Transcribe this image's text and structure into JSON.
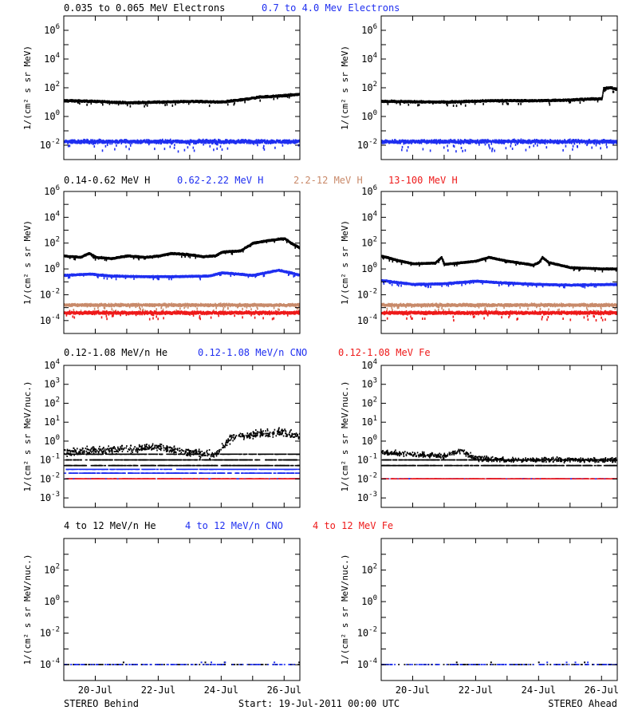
{
  "colors": {
    "black": "#000000",
    "blue": "#1f2ff0",
    "salmon": "#c98a6a",
    "red": "#ee1a1a",
    "axis": "#000000"
  },
  "footer": {
    "left": "STEREO Behind",
    "center": "Start: 19-Jul-2011 00:00 UTC",
    "right": "STEREO Ahead"
  },
  "chart_data": [
    {
      "id": "electrons",
      "type": "scatter",
      "ylabel": "1/(cm² s sr MeV)",
      "ylim_log10": [
        -3,
        7
      ],
      "yticks_log10": [
        -2,
        0,
        2,
        4,
        6
      ],
      "legend": [
        {
          "text": "0.035 to 0.065 MeV Electrons",
          "color": "black"
        },
        {
          "text": "0.7 to 4.0 Mev Electrons",
          "color": "blue"
        }
      ],
      "x_days": [
        0,
        7.5
      ],
      "xticks": [
        "20-Jul",
        "22-Jul",
        "24-Jul",
        "26-Jul"
      ],
      "xtick_days": [
        1,
        3,
        5,
        7
      ],
      "panels": [
        {
          "side": "STEREO Behind",
          "series": [
            {
              "name": "0.035 to 0.065 MeV Electrons",
              "color": "black",
              "style": "band",
              "knots": [
                [
                  0,
                  1.1
                ],
                [
                  1,
                  1.05
                ],
                [
                  2,
                  0.95
                ],
                [
                  3,
                  1.0
                ],
                [
                  4,
                  1.05
                ],
                [
                  5,
                  1.0
                ],
                [
                  5.6,
                  1.15
                ],
                [
                  6.2,
                  1.35
                ],
                [
                  7,
                  1.45
                ],
                [
                  7.5,
                  1.55
                ]
              ],
              "spread": 0.15
            },
            {
              "name": "0.7 to 4.0 Mev Electrons",
              "color": "blue",
              "style": "band",
              "knots": [
                [
                  0,
                  -1.75
                ],
                [
                  7.5,
                  -1.75
                ]
              ],
              "spread": 0.35
            }
          ]
        },
        {
          "side": "STEREO Ahead",
          "series": [
            {
              "name": "0.035 to 0.065 MeV Electrons",
              "color": "black",
              "style": "band",
              "knots": [
                [
                  0,
                  1.05
                ],
                [
                  2,
                  1.0
                ],
                [
                  3.5,
                  1.1
                ],
                [
                  4,
                  1.1
                ],
                [
                  5,
                  1.1
                ],
                [
                  6,
                  1.15
                ],
                [
                  7,
                  1.25
                ],
                [
                  7.05,
                  1.95
                ],
                [
                  7.3,
                  2.0
                ],
                [
                  7.5,
                  1.85
                ]
              ],
              "spread": 0.15
            },
            {
              "name": "0.7 to 4.0 Mev Electrons",
              "color": "blue",
              "style": "band",
              "knots": [
                [
                  0,
                  -1.75
                ],
                [
                  7.5,
                  -1.75
                ]
              ],
              "spread": 0.35
            }
          ]
        }
      ]
    },
    {
      "id": "protons",
      "type": "scatter",
      "ylabel": "1/(cm² s sr MeV)",
      "ylim_log10": [
        -5,
        6
      ],
      "yticks_log10": [
        -4,
        -2,
        0,
        2,
        4,
        6
      ],
      "legend": [
        {
          "text": "0.14-0.62 MeV H",
          "color": "black"
        },
        {
          "text": "0.62-2.22 MeV H",
          "color": "blue"
        },
        {
          "text": "2.2-12 MeV H",
          "color": "salmon"
        },
        {
          "text": "13-100 MeV H",
          "color": "red"
        }
      ],
      "x_days": [
        0,
        7.5
      ],
      "xticks": [
        "20-Jul",
        "22-Jul",
        "24-Jul",
        "26-Jul"
      ],
      "xtick_days": [
        1,
        3,
        5,
        7
      ],
      "panels": [
        {
          "side": "STEREO Behind",
          "series": [
            {
              "name": "0.14-0.62 MeV H",
              "color": "black",
              "style": "band",
              "knots": [
                [
                  0,
                  1.0
                ],
                [
                  0.5,
                  0.9
                ],
                [
                  0.8,
                  1.2
                ],
                [
                  1,
                  0.9
                ],
                [
                  1.5,
                  0.8
                ],
                [
                  2,
                  1.0
                ],
                [
                  2.6,
                  0.9
                ],
                [
                  3,
                  1.0
                ],
                [
                  3.4,
                  1.2
                ],
                [
                  4,
                  1.1
                ],
                [
                  4.4,
                  0.95
                ],
                [
                  4.8,
                  1.0
                ],
                [
                  5,
                  1.3
                ],
                [
                  5.6,
                  1.4
                ],
                [
                  6,
                  2.0
                ],
                [
                  6.5,
                  2.2
                ],
                [
                  7,
                  2.35
                ],
                [
                  7.2,
                  2.0
                ],
                [
                  7.5,
                  1.6
                ]
              ],
              "spread": 0.12
            },
            {
              "name": "0.62-2.22 MeV H",
              "color": "blue",
              "style": "band",
              "knots": [
                [
                  0,
                  -0.5
                ],
                [
                  0.8,
                  -0.4
                ],
                [
                  1.5,
                  -0.55
                ],
                [
                  2.5,
                  -0.6
                ],
                [
                  3.4,
                  -0.6
                ],
                [
                  4.6,
                  -0.55
                ],
                [
                  5,
                  -0.3
                ],
                [
                  6,
                  -0.5
                ],
                [
                  6.8,
                  -0.1
                ],
                [
                  7.2,
                  -0.3
                ],
                [
                  7.5,
                  -0.5
                ]
              ],
              "spread": 0.12
            },
            {
              "name": "2.2-12 MeV H",
              "color": "salmon",
              "style": "band",
              "knots": [
                [
                  0,
                  -2.8
                ],
                [
                  7.5,
                  -2.8
                ]
              ],
              "spread": 0.25
            },
            {
              "name": "13-100 MeV H",
              "color": "red",
              "style": "band",
              "knots": [
                [
                  0,
                  -3.4
                ],
                [
                  7.5,
                  -3.4
                ]
              ],
              "spread": 0.3
            }
          ]
        },
        {
          "side": "STEREO Ahead",
          "series": [
            {
              "name": "0.14-0.62 MeV H",
              "color": "black",
              "style": "band",
              "knots": [
                [
                  0,
                  1.0
                ],
                [
                  0.6,
                  0.6
                ],
                [
                  1,
                  0.4
                ],
                [
                  1.7,
                  0.45
                ],
                [
                  1.9,
                  0.9
                ],
                [
                  2,
                  0.35
                ],
                [
                  2.6,
                  0.5
                ],
                [
                  3,
                  0.6
                ],
                [
                  3.4,
                  0.9
                ],
                [
                  4,
                  0.6
                ],
                [
                  4.8,
                  0.3
                ],
                [
                  5,
                  0.5
                ],
                [
                  5.1,
                  0.9
                ],
                [
                  5.3,
                  0.5
                ],
                [
                  6,
                  0.1
                ],
                [
                  7,
                  0.0
                ],
                [
                  7.5,
                  0.0
                ]
              ],
              "spread": 0.1
            },
            {
              "name": "0.62-2.22 MeV H",
              "color": "blue",
              "style": "band",
              "knots": [
                [
                  0,
                  -0.9
                ],
                [
                  1,
                  -1.2
                ],
                [
                  2,
                  -1.15
                ],
                [
                  3,
                  -0.95
                ],
                [
                  4,
                  -1.1
                ],
                [
                  5,
                  -1.2
                ],
                [
                  6,
                  -1.25
                ],
                [
                  7.5,
                  -1.2
                ]
              ],
              "spread": 0.12
            },
            {
              "name": "2.2-12 MeV H",
              "color": "salmon",
              "style": "band",
              "knots": [
                [
                  0,
                  -2.8
                ],
                [
                  7.5,
                  -2.8
                ]
              ],
              "spread": 0.25
            },
            {
              "name": "13-100 MeV H",
              "color": "red",
              "style": "band",
              "knots": [
                [
                  0,
                  -3.4
                ],
                [
                  7.5,
                  -3.4
                ]
              ],
              "spread": 0.3
            }
          ]
        }
      ]
    },
    {
      "id": "heavy-low",
      "type": "scatter",
      "ylabel": "1/(cm² s sr MeV/nuc.)",
      "ylim_log10": [
        -3.5,
        4
      ],
      "yticks_log10": [
        -3,
        -2,
        -1,
        0,
        1,
        2,
        3,
        4
      ],
      "legend": [
        {
          "text": "0.12-1.08 MeV/n He",
          "color": "black"
        },
        {
          "text": "0.12-1.08 MeV/n CNO",
          "color": "blue"
        },
        {
          "text": "0.12-1.08 MeV Fe",
          "color": "red"
        }
      ],
      "x_days": [
        0,
        7.5
      ],
      "xticks": [
        "20-Jul",
        "22-Jul",
        "24-Jul",
        "26-Jul"
      ],
      "xtick_days": [
        1,
        3,
        5,
        7
      ],
      "panels": [
        {
          "side": "STEREO Behind",
          "series": [
            {
              "name": "0.12-1.08 MeV/n He",
              "color": "black",
              "style": "dots",
              "knots": [
                [
                  0,
                  -0.6
                ],
                [
                  1,
                  -0.5
                ],
                [
                  2,
                  -0.45
                ],
                [
                  3,
                  -0.3
                ],
                [
                  4,
                  -0.6
                ],
                [
                  4.8,
                  -0.7
                ],
                [
                  5.3,
                  0.2
                ],
                [
                  6,
                  0.35
                ],
                [
                  7,
                  0.45
                ],
                [
                  7.5,
                  0.2
                ]
              ],
              "spread": 0.5
            },
            {
              "name": "0.12-1.08 MeV/n He",
              "color": "black",
              "style": "levels",
              "levels": [
                -1.3,
                -1.0,
                -0.7
              ]
            },
            {
              "name": "0.12-1.08 MeV/n CNO",
              "color": "blue",
              "style": "levels",
              "levels": [
                -2.0,
                -1.7,
                -1.5
              ]
            },
            {
              "name": "0.12-1.08 MeV Fe",
              "color": "red",
              "style": "levels",
              "levels": [
                -2.0
              ]
            }
          ]
        },
        {
          "side": "STEREO Ahead",
          "series": [
            {
              "name": "0.12-1.08 MeV/n He",
              "color": "black",
              "style": "dots",
              "knots": [
                [
                  0,
                  -0.6
                ],
                [
                  1,
                  -0.7
                ],
                [
                  2,
                  -0.8
                ],
                [
                  2.5,
                  -0.5
                ],
                [
                  3,
                  -0.9
                ],
                [
                  4,
                  -1.0
                ],
                [
                  5,
                  -1.0
                ],
                [
                  6,
                  -1.0
                ],
                [
                  7.5,
                  -1.0
                ]
              ],
              "spread": 0.3
            },
            {
              "name": "0.12-1.08 MeV/n He",
              "color": "black",
              "style": "levels",
              "levels": [
                -1.3,
                -1.0
              ]
            },
            {
              "name": "0.12-1.08 MeV/n CNO",
              "color": "blue",
              "style": "levels",
              "levels": [
                -2.0
              ]
            },
            {
              "name": "0.12-1.08 MeV Fe",
              "color": "red",
              "style": "levels",
              "levels": [
                -2.0
              ]
            }
          ]
        }
      ]
    },
    {
      "id": "heavy-high",
      "type": "scatter",
      "ylabel": "1/(cm² s sr MeV/nuc.)",
      "ylim_log10": [
        -5,
        4
      ],
      "yticks_log10": [
        -4,
        -2,
        0,
        2
      ],
      "legend": [
        {
          "text": "4 to 12 MeV/n He",
          "color": "black"
        },
        {
          "text": "4 to 12 MeV/n CNO",
          "color": "blue"
        },
        {
          "text": "4 to 12 MeV Fe",
          "color": "red"
        }
      ],
      "x_days": [
        0,
        7.5
      ],
      "xticks": [
        "20-Jul",
        "22-Jul",
        "24-Jul",
        "26-Jul"
      ],
      "xtick_days": [
        1,
        3,
        5,
        7
      ],
      "panels": [
        {
          "side": "STEREO Behind",
          "series": [
            {
              "name": "4 to 12 MeV/n He",
              "color": "black",
              "style": "levels",
              "levels": [
                -4.0
              ],
              "sparse": true
            },
            {
              "name": "4 to 12 MeV/n CNO",
              "color": "blue",
              "style": "levels",
              "levels": [
                -4.0
              ],
              "sparse": true
            }
          ]
        },
        {
          "side": "STEREO Ahead",
          "series": [
            {
              "name": "4 to 12 MeV/n He",
              "color": "black",
              "style": "levels",
              "levels": [
                -4.0
              ],
              "sparse": true
            },
            {
              "name": "4 to 12 MeV/n CNO",
              "color": "blue",
              "style": "levels",
              "levels": [
                -4.0
              ],
              "sparse": true
            }
          ]
        }
      ]
    }
  ]
}
